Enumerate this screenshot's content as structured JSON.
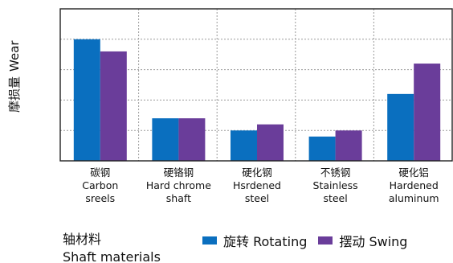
{
  "colors": {
    "rotating": "#0a6fbf",
    "swing": "#6a3d9a"
  },
  "chart_data": {
    "type": "bar",
    "categories": [
      [
        "碳钢",
        "Carbon",
        "sreels"
      ],
      [
        "硬铬钢",
        "Hard chrome",
        "shaft"
      ],
      [
        "硬化钢",
        "Hsrdened",
        "steel"
      ],
      [
        "不锈钢",
        "Stainless",
        "steel"
      ],
      [
        "硬化铝",
        "Hardened",
        "aluminum"
      ]
    ],
    "series": [
      {
        "name": "旋转 Rotating",
        "values": [
          4.0,
          1.4,
          1.0,
          0.8,
          2.2
        ]
      },
      {
        "name": "摆动 Swing",
        "values": [
          3.6,
          1.4,
          1.2,
          1.0,
          3.2
        ]
      }
    ],
    "ylabel": [
      "摩损量",
      "Wear"
    ],
    "xlabel": [
      "轴材料",
      "Shaft materials"
    ],
    "ylim": [
      0,
      5
    ],
    "grid": true,
    "legend_position": "bottom"
  }
}
